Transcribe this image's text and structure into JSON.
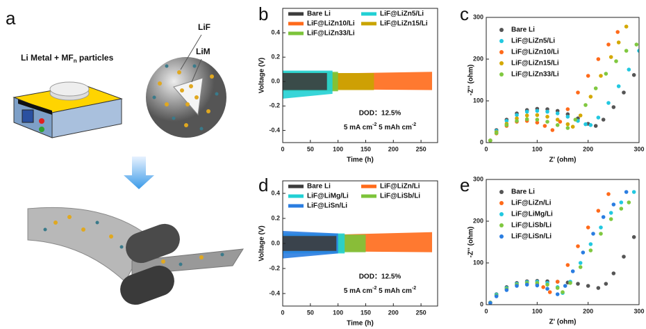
{
  "panel_labels": [
    "a",
    "b",
    "c",
    "d",
    "e"
  ],
  "illustration": {
    "title": "Li Metal + MF",
    "title_subscript": "n",
    "title_end": " particles",
    "labels": [
      "LiF",
      "LiM"
    ]
  },
  "chart_data": [
    {
      "type": "band",
      "xlabel": "Time (h)",
      "ylabel": "Voltage (V)",
      "xlim": [
        0,
        280
      ],
      "xticks": [
        0,
        50,
        100,
        150,
        200,
        250
      ],
      "ylim": [
        -0.5,
        0.6
      ],
      "yticks": [
        -0.4,
        -0.2,
        {
          "value": 0,
          "label": "0.0"
        },
        0.2,
        0.4
      ],
      "annotations": [
        "DOD：12.5%",
        [
          "5 mA cm",
          "-2",
          " 5 mAh cm",
          "-2"
        ]
      ],
      "series": [
        {
          "name": "Bare Li",
          "color": "#3c3c3c",
          "x": [
            0,
            80
          ],
          "upper": [
            0.07,
            0.07
          ],
          "lower": [
            -0.07,
            -0.07
          ]
        },
        {
          "name": "LiF@LiZn5/Li",
          "color": "#22d0d4",
          "x": [
            0,
            90
          ],
          "upper": [
            0.09,
            0.09
          ],
          "lower": [
            -0.14,
            -0.1
          ]
        },
        {
          "name": "LiF@LiZn10/Li",
          "color": "#ff6a1a",
          "x": [
            0,
            270
          ],
          "upper": [
            0.06,
            0.08
          ],
          "lower": [
            -0.06,
            -0.07
          ]
        },
        {
          "name": "LiF@LiZn15/Li",
          "color": "#c9a400",
          "x": [
            0,
            165
          ],
          "upper": [
            0.07,
            0.07
          ],
          "lower": [
            -0.07,
            -0.07
          ]
        },
        {
          "name": "LiF@LiZn33/Li",
          "color": "#7cc43a",
          "x": [
            0,
            100
          ],
          "upper": [
            0.08,
            0.08
          ],
          "lower": [
            -0.08,
            -0.08
          ]
        }
      ]
    },
    {
      "type": "scatter",
      "xlabel": "Z' (ohm)",
      "ylabel": "-Z'' (ohm)",
      "xlim": [
        0,
        300
      ],
      "xticks": [
        0,
        100,
        200,
        300
      ],
      "ylim": [
        0,
        300
      ],
      "yticks": [
        0,
        100,
        200,
        300
      ],
      "series": [
        {
          "name": "Bare Li",
          "color": "#555555",
          "x": [
            8,
            20,
            40,
            60,
            80,
            100,
            120,
            140,
            160,
            180,
            200,
            215,
            230,
            250,
            270,
            290
          ],
          "y": [
            5,
            30,
            55,
            70,
            78,
            81,
            80,
            76,
            68,
            58,
            45,
            40,
            55,
            85,
            120,
            162
          ]
        },
        {
          "name": "LiF@LiZn5/Li",
          "color": "#22c8e0",
          "x": [
            8,
            20,
            40,
            60,
            80,
            100,
            120,
            140,
            160,
            180,
            195,
            205,
            220,
            240,
            260,
            280,
            300
          ],
          "y": [
            5,
            28,
            52,
            66,
            74,
            76,
            74,
            70,
            62,
            52,
            44,
            42,
            60,
            95,
            135,
            175,
            220
          ]
        },
        {
          "name": "LiF@LiZn10/Li",
          "color": "#ff6a1a",
          "x": [
            8,
            20,
            40,
            60,
            80,
            100,
            115,
            130,
            145,
            160,
            180,
            200,
            220,
            240,
            258
          ],
          "y": [
            5,
            22,
            40,
            50,
            52,
            48,
            40,
            30,
            50,
            80,
            120,
            160,
            200,
            235,
            265
          ]
        },
        {
          "name": "LiF@LiZn15/Li",
          "color": "#d4a800",
          "x": [
            8,
            20,
            40,
            60,
            80,
            100,
            120,
            140,
            160,
            170,
            185,
            205,
            225,
            245,
            260,
            275
          ],
          "y": [
            5,
            25,
            45,
            58,
            65,
            66,
            62,
            55,
            44,
            38,
            65,
            110,
            160,
            205,
            240,
            278
          ]
        },
        {
          "name": "LiF@LiZn33/Li",
          "color": "#80c840",
          "x": [
            8,
            20,
            40,
            60,
            80,
            100,
            120,
            140,
            160,
            175,
            195,
            215,
            235,
            255,
            275,
            295
          ],
          "y": [
            5,
            23,
            42,
            52,
            56,
            55,
            50,
            42,
            35,
            55,
            90,
            130,
            165,
            195,
            220,
            235
          ]
        }
      ]
    },
    {
      "type": "band",
      "xlabel": "Time (h)",
      "ylabel": "Voltage (V)",
      "xlim": [
        0,
        280
      ],
      "xticks": [
        0,
        50,
        100,
        150,
        200,
        250
      ],
      "ylim": [
        -0.5,
        0.5
      ],
      "yticks": [
        -0.4,
        -0.2,
        {
          "value": 0,
          "label": "0.0"
        },
        0.2,
        0.4
      ],
      "annotations": [
        "DOD：12.5%",
        [
          "5 mA cm",
          "-2",
          " 5 mAh cm",
          "-2"
        ]
      ],
      "series": [
        {
          "name": "Bare Li",
          "color": "#3c3c3c",
          "x": [
            0,
            97
          ],
          "upper": [
            0.06,
            0.06
          ],
          "lower": [
            -0.06,
            -0.06
          ]
        },
        {
          "name": "LiF@LiZn/Li",
          "color": "#ff6a1a",
          "x": [
            0,
            270
          ],
          "upper": [
            0.06,
            0.09
          ],
          "lower": [
            -0.06,
            -0.07
          ]
        },
        {
          "name": "LiF@LiMg/Li",
          "color": "#22d0d4",
          "x": [
            0,
            112
          ],
          "upper": [
            0.08,
            0.08
          ],
          "lower": [
            -0.08,
            -0.08
          ]
        },
        {
          "name": "LiF@LiSb/Li",
          "color": "#7cc43a",
          "x": [
            0,
            150
          ],
          "upper": [
            0.07,
            0.07
          ],
          "lower": [
            -0.07,
            -0.07
          ]
        },
        {
          "name": "LiF@LiSn/Li",
          "color": "#2a7de1",
          "x": [
            0,
            100
          ],
          "upper": [
            0.1,
            0.08
          ],
          "lower": [
            -0.12,
            -0.08
          ]
        }
      ]
    },
    {
      "type": "scatter",
      "xlabel": "Z' (ohm)",
      "ylabel": "-Z'' (ohm)",
      "xlim": [
        0,
        300
      ],
      "xticks": [
        0,
        100,
        200,
        300
      ],
      "ylim": [
        0,
        300
      ],
      "yticks": [
        0,
        100,
        200,
        300
      ],
      "series": [
        {
          "name": "Bare Li",
          "color": "#555555",
          "x": [
            8,
            20,
            40,
            60,
            80,
            100,
            120,
            140,
            160,
            180,
            200,
            220,
            235,
            250,
            270,
            290
          ],
          "y": [
            5,
            25,
            42,
            52,
            56,
            57,
            56,
            55,
            53,
            50,
            45,
            40,
            50,
            75,
            115,
            162
          ]
        },
        {
          "name": "LiF@LiZn/Li",
          "color": "#ff6a1a",
          "x": [
            8,
            20,
            40,
            60,
            80,
            100,
            112,
            125,
            140,
            160,
            180,
            200,
            220,
            240
          ],
          "y": [
            5,
            22,
            38,
            48,
            52,
            50,
            42,
            30,
            55,
            95,
            140,
            185,
            225,
            265
          ]
        },
        {
          "name": "LiF@LiMg/Li",
          "color": "#22c8e0",
          "x": [
            8,
            20,
            40,
            60,
            80,
            100,
            120,
            140,
            150,
            165,
            185,
            205,
            225,
            245,
            265,
            290
          ],
          "y": [
            5,
            24,
            40,
            50,
            54,
            55,
            52,
            42,
            28,
            55,
            100,
            145,
            185,
            220,
            245,
            270
          ]
        },
        {
          "name": "LiF@LiSb/Li",
          "color": "#80c840",
          "x": [
            8,
            20,
            40,
            60,
            80,
            100,
            120,
            140,
            150,
            165,
            185,
            205,
            225,
            245,
            265,
            280
          ],
          "y": [
            5,
            22,
            38,
            48,
            52,
            52,
            48,
            40,
            30,
            52,
            90,
            130,
            170,
            205,
            230,
            245
          ]
        },
        {
          "name": "LiF@LiSn/Li",
          "color": "#2a7de1",
          "x": [
            8,
            20,
            40,
            60,
            80,
            100,
            120,
            140,
            155,
            170,
            190,
            210,
            230,
            250,
            275
          ],
          "y": [
            4,
            20,
            35,
            45,
            48,
            46,
            38,
            25,
            45,
            80,
            125,
            170,
            210,
            240,
            270
          ]
        }
      ]
    }
  ]
}
